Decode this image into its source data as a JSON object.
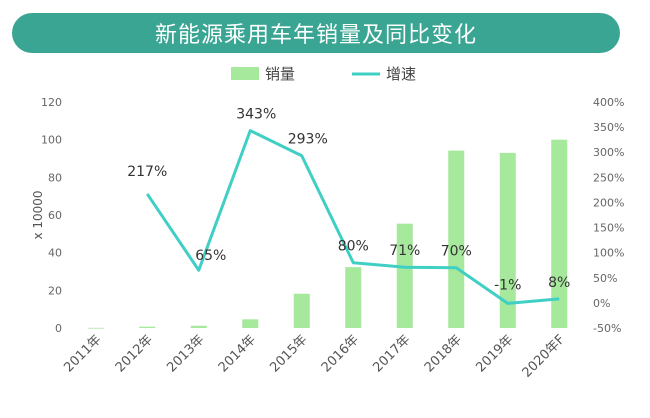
{
  "chart_data": {
    "type": "bar",
    "title": "新能源乘用车年销量及同比变化",
    "left_axis_unit": "x 10000",
    "categories": [
      "2011年",
      "2012年",
      "2013年",
      "2014年",
      "2015年",
      "2016年",
      "2017年",
      "2018年",
      "2019年",
      "2020年F"
    ],
    "series": [
      {
        "name": "销量",
        "type": "bar",
        "axis": "left",
        "values": [
          0.1,
          0.7,
          1.2,
          4.6,
          18.2,
          32.3,
          55.4,
          94.2,
          93.0,
          100.0
        ]
      },
      {
        "name": "增速",
        "type": "line",
        "axis": "right",
        "values": [
          null,
          217,
          65,
          343,
          293,
          80,
          71,
          70,
          -1,
          8
        ],
        "labels": [
          null,
          "217%",
          "65%",
          "343%",
          "293%",
          "80%",
          "71%",
          "70%",
          "-1%",
          "8%"
        ]
      }
    ],
    "left_axis": {
      "min": 0,
      "max": 120,
      "ticks": [
        "0",
        "20",
        "40",
        "60",
        "80",
        "100",
        "120"
      ]
    },
    "right_axis": {
      "min": -50,
      "max": 400,
      "ticks": [
        "-50%",
        "0%",
        "50%",
        "100%",
        "150%",
        "200%",
        "250%",
        "300%",
        "350%",
        "400%"
      ]
    },
    "legend_position": "top-center",
    "grid": false,
    "colors": {
      "bar": "#a6e99c",
      "line": "#3fcfc4",
      "banner": "#3aa593"
    }
  }
}
